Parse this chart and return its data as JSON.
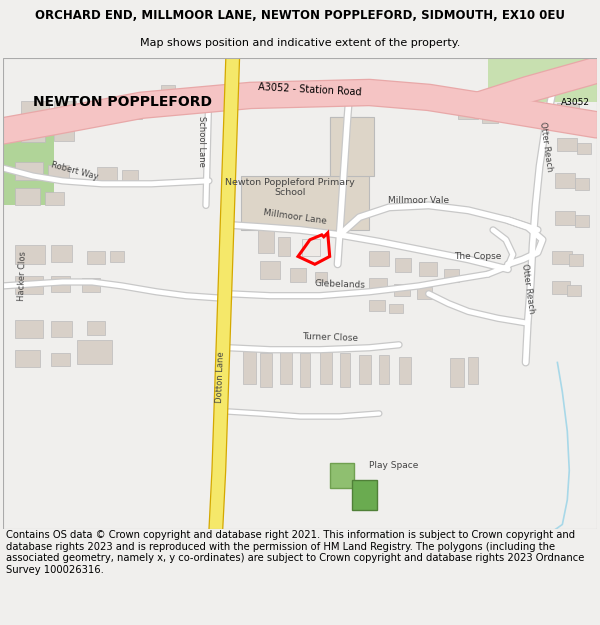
{
  "title_line1": "ORCHARD END, MILLMOOR LANE, NEWTON POPPLEFORD, SIDMOUTH, EX10 0EU",
  "title_line2": "Map shows position and indicative extent of the property.",
  "footer_text": "Contains OS data © Crown copyright and database right 2021. This information is subject to Crown copyright and database rights 2023 and is reproduced with the permission of HM Land Registry. The polygons (including the associated geometry, namely x, y co-ordinates) are subject to Crown copyright and database rights 2023 Ordnance Survey 100026316.",
  "bg_color": "#f0efed",
  "map_bg": "#f5f5f2",
  "road_a_fill": "#f5c4c4",
  "road_a_edge": "#e8a8a8",
  "road_y_fill": "#f5e86a",
  "road_y_edge": "#d4a800",
  "road_w_fill": "#ffffff",
  "road_w_edge": "#c8c8c8",
  "build_fill": "#d8d0c8",
  "build_edge": "#bbbbbb",
  "school_fill": "#ddd5c8",
  "green1": "#8fbf70",
  "green2": "#6aab50",
  "green3": "#b8d4a0",
  "highlight": "#ff0000",
  "water": "#a8d8e8",
  "title_fs": 8.5,
  "sub_fs": 8.0,
  "footer_fs": 7.2,
  "label_fs": 6.5
}
